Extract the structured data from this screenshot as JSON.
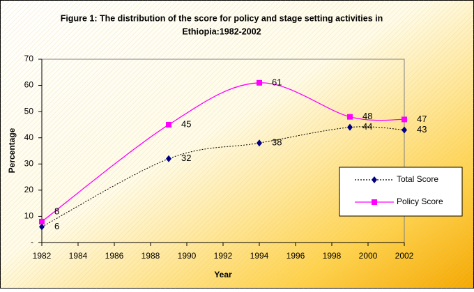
{
  "chart_data": {
    "type": "line",
    "title": [
      "Figure 1: The distribution of the score for policy and stage setting activities in",
      "Ethiopia:1982-2002"
    ],
    "x_label": "Year",
    "y_label": "Percentage",
    "x": [
      1982,
      1989,
      1994,
      1999,
      2002
    ],
    "series": [
      {
        "name": "Total Score",
        "color": "#000080",
        "values": [
          6,
          32,
          38,
          44,
          43
        ]
      },
      {
        "name": "Policy Score",
        "color": "#ff00ff",
        "values": [
          8,
          45,
          61,
          48,
          47
        ]
      }
    ],
    "xlim": [
      1982,
      2002
    ],
    "xticks": [
      1982,
      1984,
      1986,
      1988,
      1990,
      1992,
      1994,
      1996,
      1998,
      2000,
      2002
    ],
    "ylim": [
      0,
      70
    ],
    "yticks": [
      {
        "value": 0,
        "label": "-"
      },
      10,
      20,
      30,
      40,
      50,
      60,
      70
    ],
    "legend": "right",
    "smooth": true
  }
}
